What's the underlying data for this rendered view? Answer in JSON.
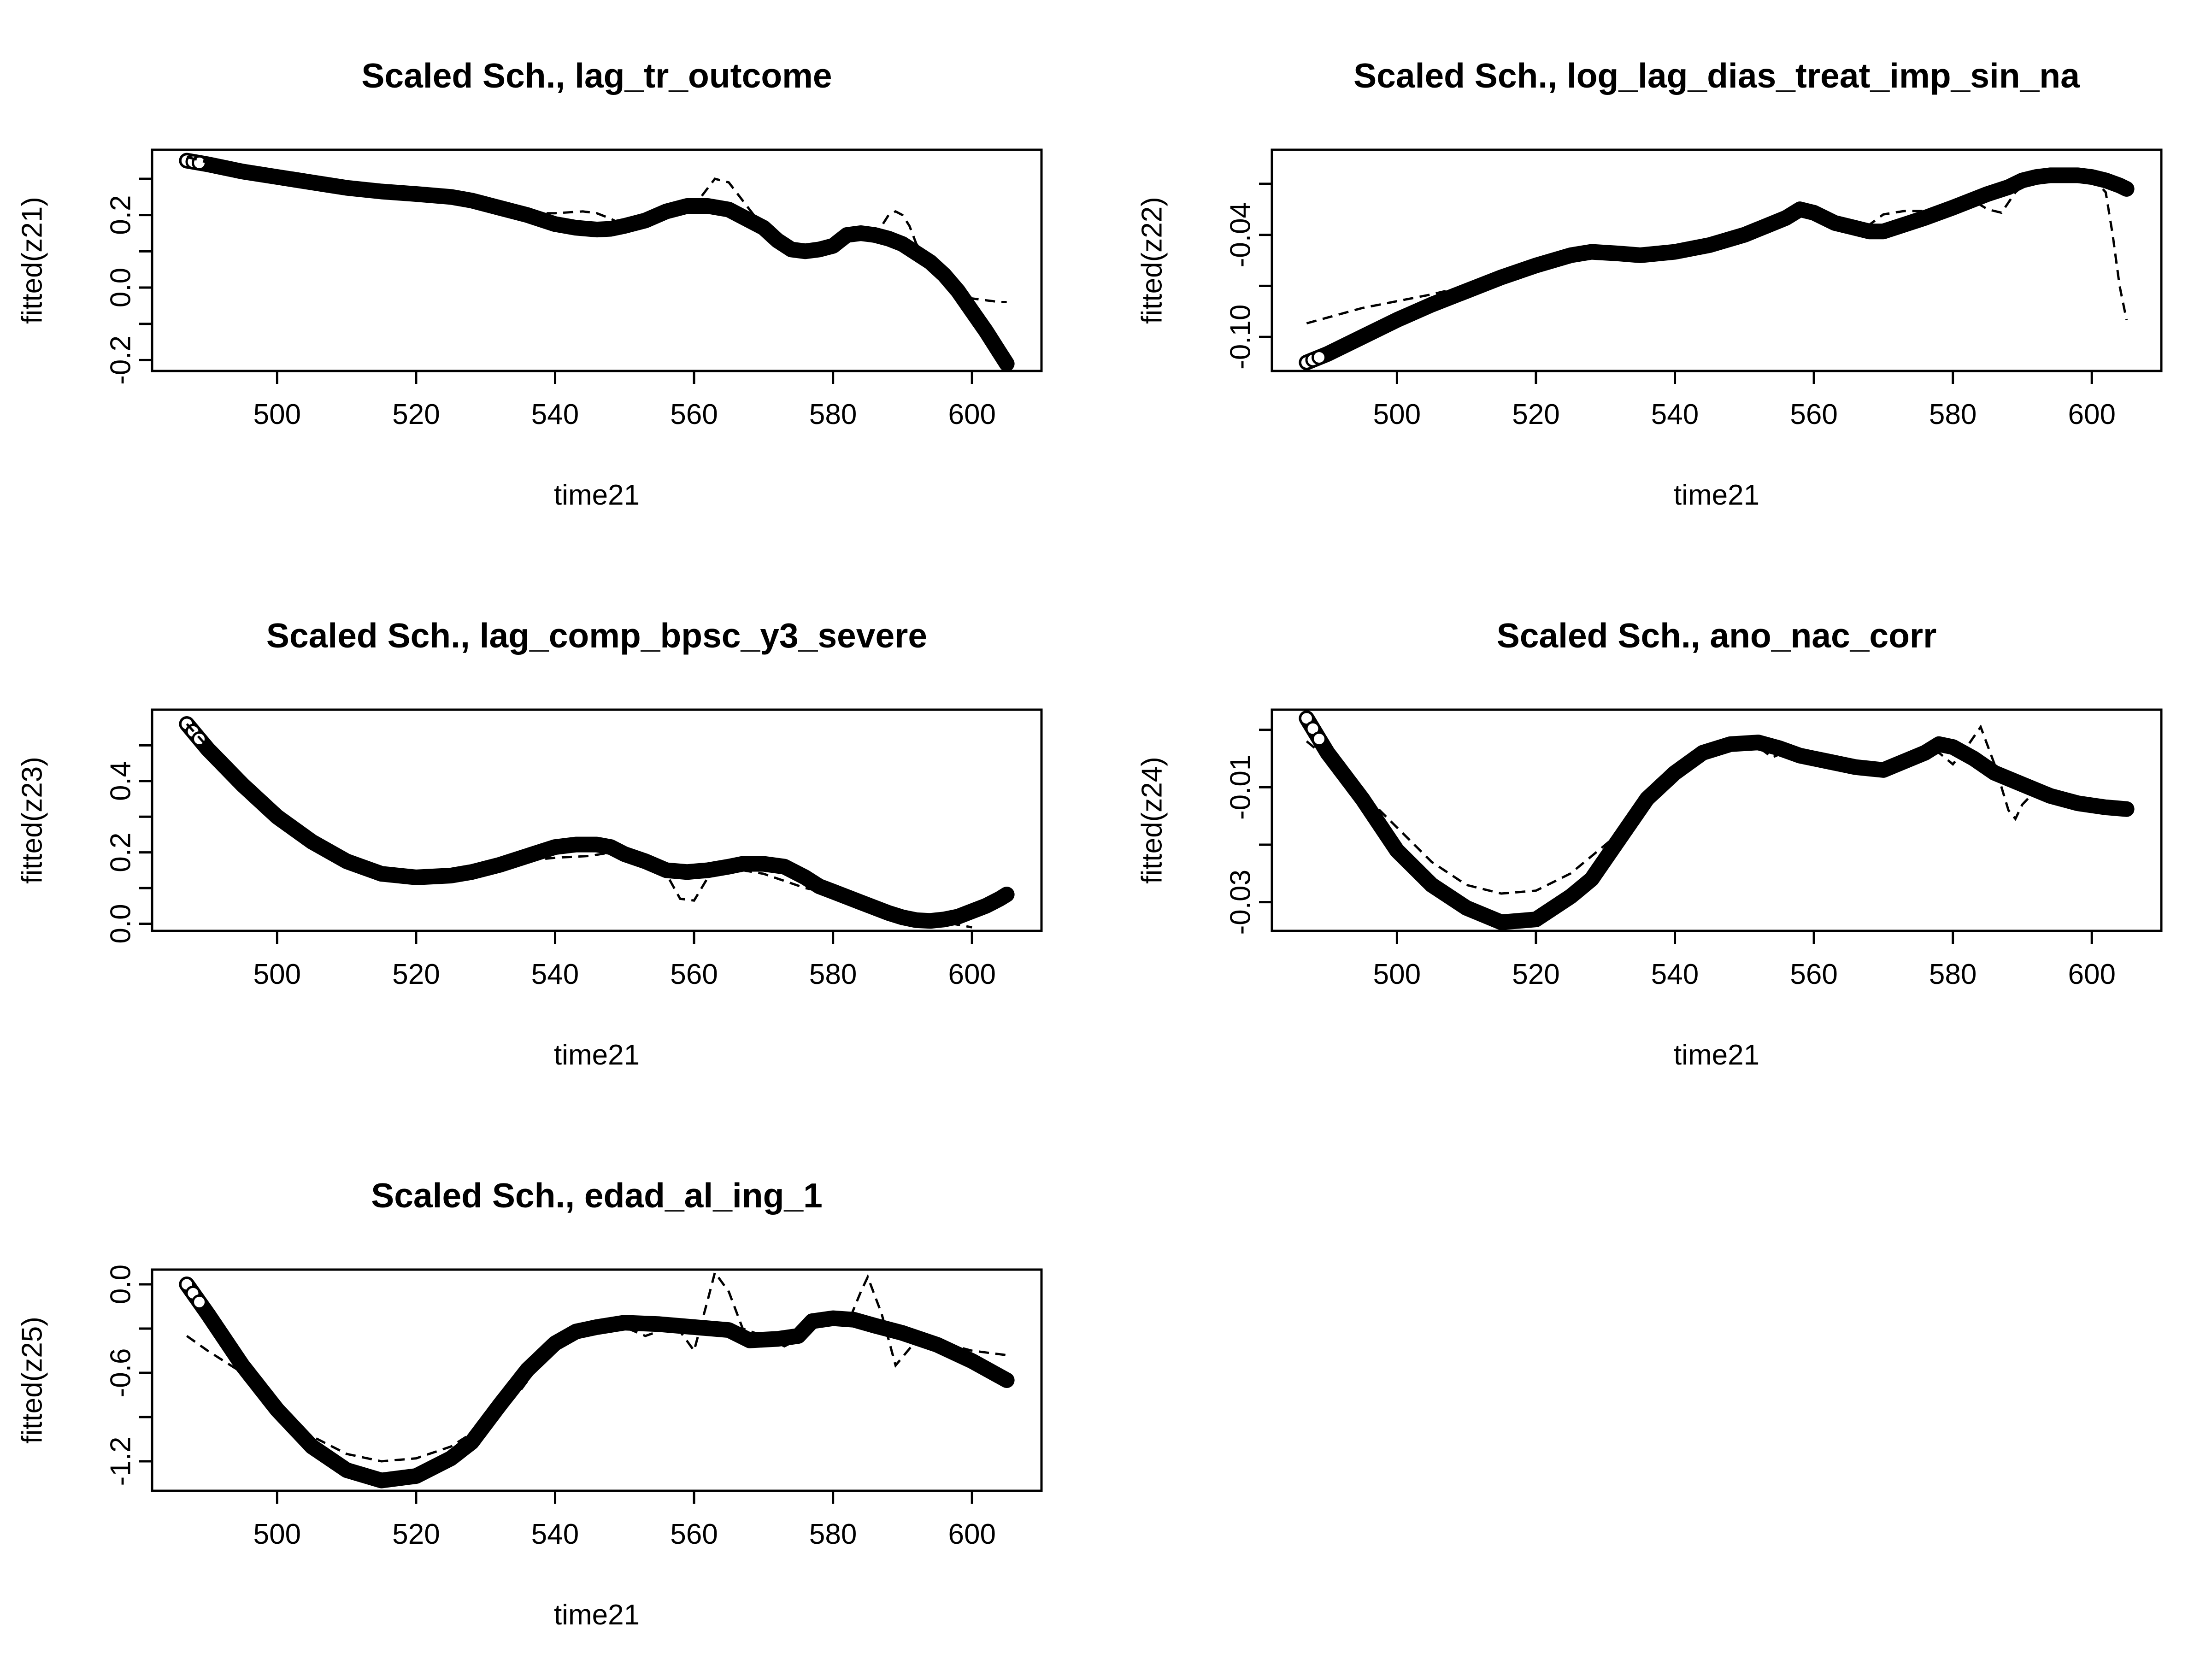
{
  "chart_data": [
    {
      "type": "line",
      "title": "Scaled Sch., lag_tr_outcome",
      "xlabel": "time21",
      "ylabel": "fitted(z21)",
      "xlim": [
        482,
        610
      ],
      "ylim": [
        -0.23,
        0.38
      ],
      "xticks": [
        500,
        520,
        540,
        560,
        580,
        600
      ],
      "xtick_labels": [
        "500",
        "520",
        "540",
        "560",
        "580",
        "600"
      ],
      "yticks": [
        -0.2,
        0.0,
        0.2
      ],
      "ytick_labels": [
        "-0.2",
        "0.0",
        "0.2"
      ],
      "grid": false,
      "series": [
        {
          "style": "thick solid",
          "x": [
            487,
            490,
            495,
            500,
            505,
            510,
            515,
            520,
            525,
            528,
            532,
            536,
            540,
            543,
            546,
            548,
            550,
            553,
            556,
            559,
            562,
            565,
            567,
            570,
            572,
            574,
            576,
            578,
            580,
            582,
            584,
            586,
            588,
            590,
            592,
            594,
            596,
            598,
            600,
            602,
            604,
            605
          ],
          "y": [
            0.35,
            0.34,
            0.32,
            0.305,
            0.29,
            0.275,
            0.265,
            0.258,
            0.25,
            0.24,
            0.22,
            0.2,
            0.175,
            0.165,
            0.16,
            0.162,
            0.17,
            0.185,
            0.21,
            0.225,
            0.225,
            0.215,
            0.195,
            0.165,
            0.13,
            0.105,
            0.1,
            0.105,
            0.115,
            0.145,
            0.15,
            0.145,
            0.135,
            0.12,
            0.095,
            0.07,
            0.035,
            -0.01,
            -0.065,
            -0.12,
            -0.18,
            -0.21
          ]
        },
        {
          "style": "dashed",
          "x": [
            487,
            490,
            495,
            500,
            505,
            510,
            515,
            520,
            525,
            528,
            532,
            536,
            540,
            544,
            546,
            548,
            550,
            553,
            556,
            559,
            561,
            563,
            565,
            567,
            570,
            572,
            574,
            576,
            578,
            580,
            582,
            584,
            586,
            588,
            589,
            590,
            591,
            592,
            594,
            596,
            598,
            600,
            602,
            604,
            605
          ],
          "y": [
            0.36,
            0.345,
            0.325,
            0.305,
            0.29,
            0.275,
            0.265,
            0.258,
            0.25,
            0.24,
            0.22,
            0.205,
            0.205,
            0.21,
            0.205,
            0.19,
            0.17,
            0.185,
            0.205,
            0.215,
            0.25,
            0.3,
            0.29,
            0.24,
            0.165,
            0.13,
            0.105,
            0.1,
            0.105,
            0.115,
            0.145,
            0.15,
            0.14,
            0.2,
            0.21,
            0.2,
            0.17,
            0.12,
            0.08,
            0.04,
            0.0,
            -0.03,
            -0.035,
            -0.04,
            -0.04
          ]
        }
      ]
    },
    {
      "type": "line",
      "title": "Scaled Sch., log_lag_dias_treat_imp_sin_na",
      "xlabel": "time21",
      "ylabel": "fitted(z22)",
      "xlim": [
        482,
        610
      ],
      "ylim": [
        -0.12,
        0.01
      ],
      "xticks": [
        500,
        520,
        540,
        560,
        580,
        600
      ],
      "xtick_labels": [
        "500",
        "520",
        "540",
        "560",
        "580",
        "600"
      ],
      "yticks": [
        -0.1,
        -0.04
      ],
      "ytick_labels": [
        "-0.10",
        "-0.04"
      ],
      "grid": false,
      "series": [
        {
          "style": "thick solid",
          "x": [
            487,
            490,
            495,
            500,
            505,
            510,
            515,
            520,
            525,
            528,
            532,
            535,
            540,
            545,
            550,
            553,
            556,
            558,
            560,
            563,
            566,
            568,
            570,
            573,
            576,
            580,
            585,
            588,
            590,
            592,
            594,
            596,
            598,
            600,
            602,
            604,
            605
          ],
          "y": [
            -0.115,
            -0.11,
            -0.1,
            -0.09,
            -0.081,
            -0.073,
            -0.065,
            -0.058,
            -0.052,
            -0.05,
            -0.051,
            -0.052,
            -0.05,
            -0.046,
            -0.04,
            -0.035,
            -0.03,
            -0.025,
            -0.027,
            -0.033,
            -0.036,
            -0.038,
            -0.038,
            -0.034,
            -0.03,
            -0.024,
            -0.016,
            -0.012,
            -0.008,
            -0.006,
            -0.005,
            -0.005,
            -0.005,
            -0.006,
            -0.008,
            -0.011,
            -0.013
          ]
        },
        {
          "style": "dashed",
          "x": [
            487,
            495,
            505,
            515,
            525,
            528,
            532,
            535,
            540,
            545,
            550,
            553,
            556,
            558,
            560,
            563,
            566,
            568,
            570,
            573,
            576,
            580,
            583,
            585,
            587,
            589,
            591,
            594,
            598,
            600,
            602,
            603,
            604,
            605
          ],
          "y": [
            -0.092,
            -0.083,
            -0.075,
            -0.065,
            -0.055,
            -0.05,
            -0.051,
            -0.052,
            -0.05,
            -0.046,
            -0.04,
            -0.035,
            -0.03,
            -0.025,
            -0.027,
            -0.033,
            -0.036,
            -0.034,
            -0.028,
            -0.026,
            -0.026,
            -0.022,
            -0.02,
            -0.025,
            -0.027,
            -0.015,
            -0.008,
            -0.005,
            -0.005,
            -0.006,
            -0.015,
            -0.04,
            -0.07,
            -0.09
          ]
        }
      ]
    },
    {
      "type": "line",
      "title": "Scaled Sch., lag_comp_bpsc_y3_severe",
      "xlabel": "time21",
      "ylabel": "fitted(z23)",
      "xlim": [
        482,
        610
      ],
      "ylim": [
        -0.02,
        0.6
      ],
      "xticks": [
        500,
        520,
        540,
        560,
        580,
        600
      ],
      "xtick_labels": [
        "500",
        "520",
        "540",
        "560",
        "580",
        "600"
      ],
      "yticks": [
        0.0,
        0.2,
        0.4
      ],
      "ytick_labels": [
        "0.0",
        "0.2",
        "0.4"
      ],
      "grid": false,
      "series": [
        {
          "style": "thick solid",
          "x": [
            487,
            490,
            495,
            500,
            505,
            510,
            515,
            520,
            525,
            528,
            532,
            536,
            540,
            543,
            546,
            548,
            550,
            553,
            556,
            559,
            562,
            565,
            567,
            570,
            573,
            576,
            578,
            580,
            584,
            588,
            590,
            592,
            594,
            596,
            598,
            600,
            602,
            604,
            605
          ],
          "y": [
            0.56,
            0.49,
            0.39,
            0.3,
            0.23,
            0.175,
            0.14,
            0.13,
            0.135,
            0.145,
            0.165,
            0.19,
            0.215,
            0.222,
            0.222,
            0.215,
            0.195,
            0.175,
            0.15,
            0.145,
            0.15,
            0.16,
            0.168,
            0.168,
            0.16,
            0.13,
            0.105,
            0.09,
            0.06,
            0.03,
            0.018,
            0.01,
            0.008,
            0.012,
            0.02,
            0.035,
            0.05,
            0.07,
            0.082
          ]
        },
        {
          "style": "dashed",
          "x": [
            487,
            495,
            505,
            515,
            520,
            525,
            530,
            535,
            540,
            545,
            548,
            550,
            553,
            556,
            558,
            560,
            562,
            564,
            567,
            570,
            573,
            576,
            580,
            585,
            590,
            595,
            600
          ],
          "y": [
            0.56,
            0.39,
            0.23,
            0.14,
            0.13,
            0.13,
            0.15,
            0.175,
            0.185,
            0.19,
            0.2,
            0.19,
            0.175,
            0.14,
            0.07,
            0.065,
            0.13,
            0.155,
            0.15,
            0.14,
            0.12,
            0.1,
            0.085,
            0.05,
            0.02,
            0.008,
            -0.01
          ]
        }
      ]
    },
    {
      "type": "line",
      "title": "Scaled Sch., ano_nac_corr",
      "xlabel": "time21",
      "ylabel": "fitted(z24)",
      "xlim": [
        482,
        610
      ],
      "ylim": [
        -0.035,
        0.0035
      ],
      "xticks": [
        500,
        520,
        540,
        560,
        580,
        600
      ],
      "xtick_labels": [
        "500",
        "520",
        "540",
        "560",
        "580",
        "600"
      ],
      "yticks": [
        -0.03,
        -0.01
      ],
      "ytick_labels": [
        "-0.03",
        "-0.01"
      ],
      "grid": false,
      "series": [
        {
          "style": "thick solid",
          "x": [
            487,
            490,
            495,
            500,
            505,
            510,
            515,
            520,
            525,
            528,
            532,
            536,
            540,
            544,
            548,
            552,
            555,
            558,
            562,
            566,
            570,
            573,
            576,
            578,
            580,
            583,
            586,
            590,
            594,
            598,
            602,
            605
          ],
          "y": [
            0.002,
            -0.004,
            -0.012,
            -0.021,
            -0.027,
            -0.031,
            -0.0335,
            -0.033,
            -0.029,
            -0.026,
            -0.019,
            -0.012,
            -0.0075,
            -0.004,
            -0.0025,
            -0.0022,
            -0.0032,
            -0.0045,
            -0.0055,
            -0.0065,
            -0.007,
            -0.0055,
            -0.004,
            -0.0025,
            -0.003,
            -0.005,
            -0.0075,
            -0.0095,
            -0.0115,
            -0.0128,
            -0.0135,
            -0.0138
          ]
        },
        {
          "style": "dashed",
          "x": [
            487,
            490,
            495,
            500,
            505,
            510,
            515,
            520,
            525,
            528,
            532,
            536,
            540,
            544,
            548,
            552,
            554,
            556,
            558,
            562,
            566,
            570,
            573,
            576,
            578,
            580,
            582,
            584,
            586,
            588,
            589,
            590,
            592,
            594,
            598,
            602,
            605
          ],
          "y": [
            -0.002,
            -0.005,
            -0.011,
            -0.017,
            -0.023,
            -0.027,
            -0.0285,
            -0.028,
            -0.025,
            -0.022,
            -0.018,
            -0.012,
            -0.0075,
            -0.004,
            -0.0025,
            -0.003,
            -0.0048,
            -0.0038,
            -0.0045,
            -0.0055,
            -0.0065,
            -0.007,
            -0.0055,
            -0.0045,
            -0.004,
            -0.006,
            -0.003,
            0.0005,
            -0.006,
            -0.014,
            -0.0155,
            -0.013,
            -0.0105,
            -0.0115,
            -0.0128,
            -0.0135,
            -0.0138
          ]
        }
      ]
    },
    {
      "type": "line",
      "title": "Scaled Sch., edad_al_ing_1",
      "xlabel": "time21",
      "ylabel": "fitted(z25)",
      "xlim": [
        482,
        610
      ],
      "ylim": [
        -1.4,
        0.1
      ],
      "xticks": [
        500,
        520,
        540,
        560,
        580,
        600
      ],
      "xtick_labels": [
        "500",
        "520",
        "540",
        "560",
        "580",
        "600"
      ],
      "yticks": [
        -1.2,
        -0.6,
        0.0
      ],
      "ytick_labels": [
        "-1.2",
        "-0.6",
        "0.0"
      ],
      "grid": false,
      "series": [
        {
          "style": "thick solid",
          "x": [
            487,
            490,
            495,
            500,
            505,
            510,
            515,
            520,
            525,
            528,
            532,
            536,
            540,
            543,
            546,
            550,
            555,
            560,
            565,
            568,
            572,
            575,
            577,
            580,
            583,
            586,
            590,
            595,
            600,
            605
          ],
          "y": [
            0.0,
            -0.2,
            -0.55,
            -0.85,
            -1.1,
            -1.26,
            -1.33,
            -1.3,
            -1.18,
            -1.07,
            -0.82,
            -0.58,
            -0.4,
            -0.32,
            -0.29,
            -0.26,
            -0.27,
            -0.29,
            -0.31,
            -0.38,
            -0.37,
            -0.35,
            -0.25,
            -0.23,
            -0.24,
            -0.28,
            -0.33,
            -0.41,
            -0.52,
            -0.65
          ]
        },
        {
          "style": "dashed",
          "x": [
            487,
            490,
            495,
            500,
            505,
            510,
            515,
            520,
            525,
            530,
            535,
            540,
            545,
            550,
            553,
            556,
            558,
            560,
            562,
            563,
            565,
            567,
            570,
            573,
            576,
            578,
            580,
            582,
            584,
            585,
            587,
            589,
            592,
            596,
            600,
            605
          ],
          "y": [
            -0.35,
            -0.45,
            -0.6,
            -0.85,
            -1.03,
            -1.15,
            -1.2,
            -1.18,
            -1.1,
            -0.95,
            -0.72,
            -0.4,
            -0.32,
            -0.29,
            -0.35,
            -0.3,
            -0.32,
            -0.45,
            -0.1,
            0.08,
            -0.05,
            -0.3,
            -0.35,
            -0.42,
            -0.35,
            -0.27,
            -0.25,
            -0.28,
            -0.05,
            0.05,
            -0.2,
            -0.55,
            -0.38,
            -0.4,
            -0.45,
            -0.48
          ]
        }
      ]
    }
  ]
}
